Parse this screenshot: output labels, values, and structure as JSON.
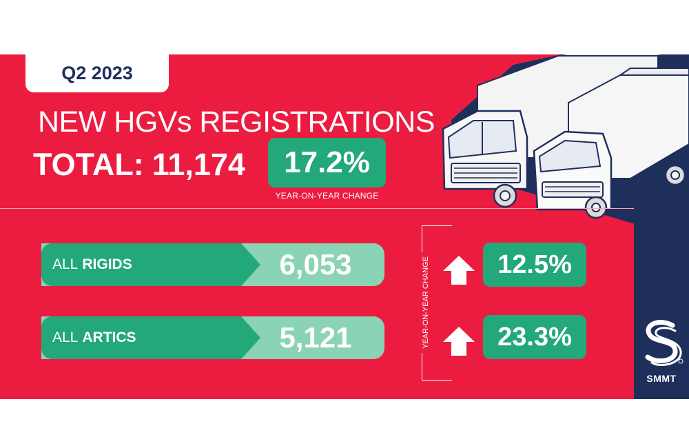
{
  "quarter": "Q2 2023",
  "headline": "NEW HGVs REGISTRATIONS",
  "total": {
    "label": "TOTAL:",
    "value": "11,174",
    "change": "17.2%",
    "change_caption": "YEAR-ON-YEAR CHANGE"
  },
  "side_label": "YEAR-ON-YEAR CHANGE",
  "segments": [
    {
      "prefix": "ALL",
      "name": "RIGIDS",
      "value": "6,053",
      "change": "12.5%",
      "direction": "up"
    },
    {
      "prefix": "ALL",
      "name": "ARTICS",
      "value": "5,121",
      "change": "23.3%",
      "direction": "up"
    }
  ],
  "brand": {
    "name": "SMMT",
    "logo_icon": "smmt-s-logo-icon"
  },
  "colors": {
    "panel_red": "#ec1c40",
    "navy": "#1f2f5c",
    "green": "#23a87a",
    "light_green": "#8ad3b5"
  }
}
